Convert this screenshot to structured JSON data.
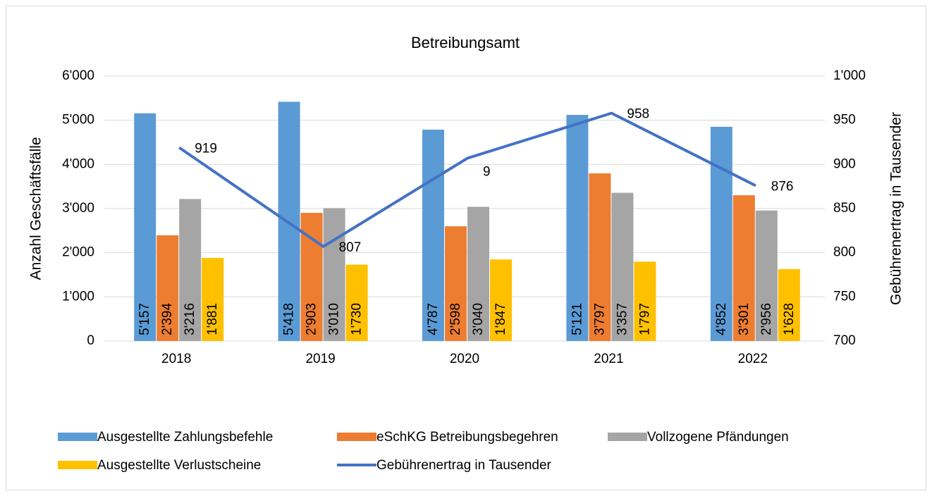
{
  "chart_data": {
    "type": "bar",
    "title": "Betreibungsamt",
    "ylabel": "Anzahl Geschäftsfälle",
    "y2label": "Gebührenertrag in Tausender",
    "categories": [
      "2018",
      "2019",
      "2020",
      "2021",
      "2022"
    ],
    "ylim": [
      0,
      6000
    ],
    "yticks": [
      0,
      {
        "value": 1000,
        "label": "1'000"
      },
      {
        "value": 2000,
        "label": "2'000"
      },
      {
        "value": 3000,
        "label": "3'000"
      },
      {
        "value": 4000,
        "label": "4'000"
      },
      {
        "value": 5000,
        "label": "5'000"
      },
      {
        "value": 6000,
        "label": "6'000"
      }
    ],
    "y2lim": [
      700,
      1000
    ],
    "y2ticks": [
      700,
      750,
      800,
      850,
      900,
      950,
      {
        "value": 1000,
        "label": "1'000"
      }
    ],
    "grid": true,
    "legend": "bottom",
    "series": [
      {
        "name": "Ausgestellte Zahlungsbefehle",
        "color": "#5b9bd5",
        "values": [
          5157,
          5418,
          4787,
          5121,
          4852
        ],
        "value_labels": [
          "5'157",
          "5'418",
          "4'787",
          "5'121",
          "4'852"
        ]
      },
      {
        "name": "eSchKG Betreibungsbegehren",
        "color": "#ed7d31",
        "values": [
          2394,
          2903,
          2598,
          3797,
          3301
        ],
        "value_labels": [
          "2'394",
          "2'903",
          "2'598",
          "3'797",
          "3'301"
        ]
      },
      {
        "name": "Vollzogene Pfändungen",
        "color": "#a5a5a5",
        "values": [
          3216,
          3010,
          3040,
          3357,
          2956
        ],
        "value_labels": [
          "3'216",
          "3'010",
          "3'040",
          "3'357",
          "2'956"
        ]
      },
      {
        "name": "Ausgestellte Verlustscheine",
        "color": "#ffc000",
        "values": [
          1881,
          1730,
          1847,
          1797,
          1628
        ],
        "value_labels": [
          "1'881",
          "1'730",
          "1'847",
          "1'797",
          "1'628"
        ]
      },
      {
        "name": "Gebührenertrag in Tausender",
        "color": "#4472c4",
        "type": "line",
        "axis": "y2",
        "values": [
          919,
          807,
          907,
          958,
          876
        ],
        "value_labels": [
          "919",
          "807",
          null,
          "958",
          "876"
        ]
      }
    ],
    "annotations": [
      {
        "text": "9",
        "category": "2020"
      }
    ]
  }
}
